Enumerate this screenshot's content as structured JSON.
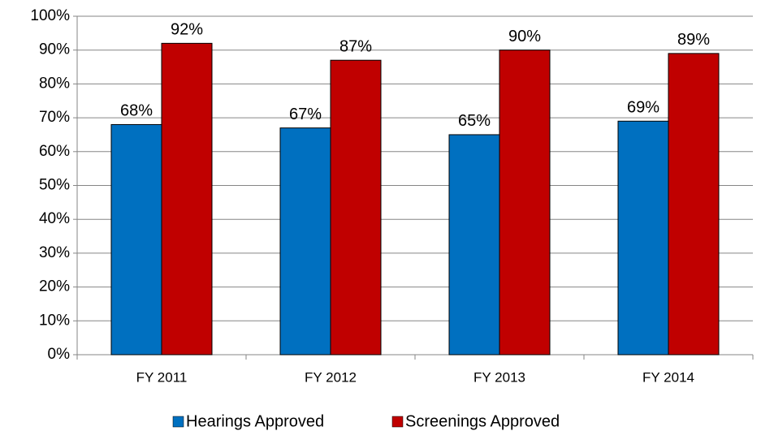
{
  "chart_data": {
    "type": "bar",
    "categories": [
      "FY 2011",
      "FY 2012",
      "FY 2013",
      "FY 2014"
    ],
    "series": [
      {
        "name": "Hearings Approved",
        "color": "#0070c0",
        "values": [
          68,
          67,
          65,
          69
        ],
        "value_labels": [
          "68%",
          "67%",
          "65%",
          "69%"
        ]
      },
      {
        "name": "Screenings Approved",
        "color": "#c00000",
        "values": [
          92,
          87,
          90,
          89
        ],
        "value_labels": [
          "92%",
          "87%",
          "90%",
          "89%"
        ]
      }
    ],
    "ylim": [
      0,
      100
    ],
    "yticks": [
      {
        "value": 0,
        "label": "0%"
      },
      {
        "value": 10,
        "label": "10%"
      },
      {
        "value": 20,
        "label": "20%"
      },
      {
        "value": 30,
        "label": "30%"
      },
      {
        "value": 40,
        "label": "40%"
      },
      {
        "value": 50,
        "label": "50%"
      },
      {
        "value": 60,
        "label": "60%"
      },
      {
        "value": 70,
        "label": "70%"
      },
      {
        "value": 80,
        "label": "80%"
      },
      {
        "value": 90,
        "label": "90%"
      },
      {
        "value": 100,
        "label": "100%"
      }
    ],
    "grid": true,
    "legend": "bottom"
  }
}
